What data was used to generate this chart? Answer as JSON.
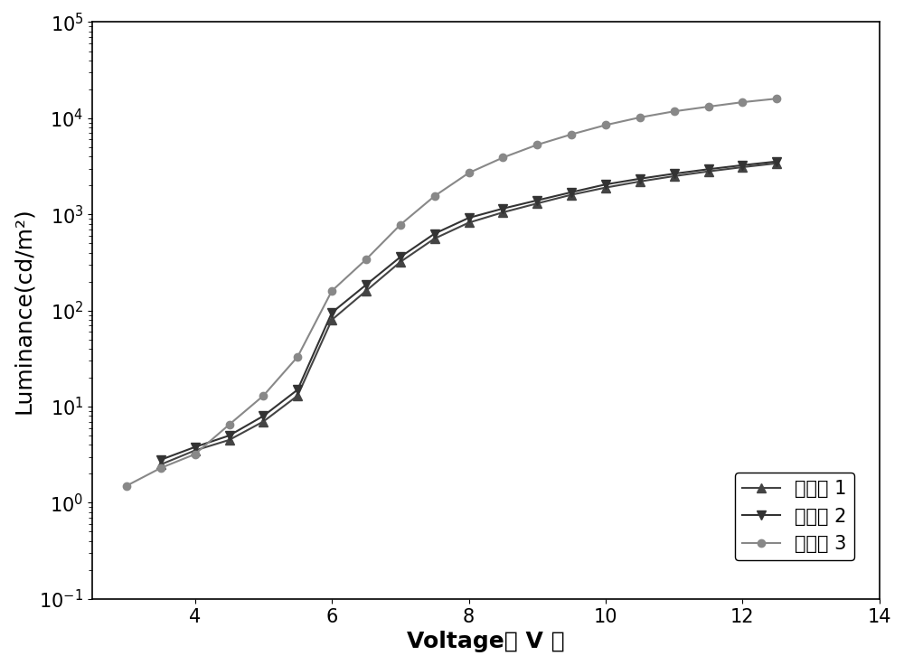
{
  "title": "",
  "xlabel": "Voltage （ V ）",
  "ylabel": "Luminance(cd/m²)",
  "xlim": [
    2.5,
    14
  ],
  "ylim": [
    0.1,
    100000
  ],
  "xticks": [
    4,
    6,
    8,
    10,
    12,
    14
  ],
  "background_color": "#ffffff",
  "series": [
    {
      "label": "化合物 1",
      "marker": "^",
      "color": "#444444",
      "linewidth": 1.5,
      "markersize": 7,
      "x": [
        3.5,
        4.0,
        4.5,
        5.0,
        5.5,
        6.0,
        6.5,
        7.0,
        7.5,
        8.0,
        8.5,
        9.0,
        9.5,
        10.0,
        10.5,
        11.0,
        11.5,
        12.0,
        12.5
      ],
      "y": [
        2.5,
        3.5,
        4.5,
        7.0,
        13.0,
        80,
        160,
        320,
        560,
        820,
        1050,
        1300,
        1600,
        1900,
        2200,
        2500,
        2800,
        3100,
        3400
      ]
    },
    {
      "label": "化合物 2",
      "marker": "v",
      "color": "#333333",
      "linewidth": 1.5,
      "markersize": 7,
      "x": [
        3.5,
        4.0,
        4.5,
        5.0,
        5.5,
        6.0,
        6.5,
        7.0,
        7.5,
        8.0,
        8.5,
        9.0,
        9.5,
        10.0,
        10.5,
        11.0,
        11.5,
        12.0,
        12.5
      ],
      "y": [
        2.8,
        3.8,
        5.0,
        8.0,
        15.0,
        95,
        185,
        360,
        630,
        920,
        1150,
        1400,
        1700,
        2050,
        2350,
        2650,
        2950,
        3250,
        3550
      ]
    },
    {
      "label": "化合物 3",
      "marker": "o",
      "color": "#888888",
      "linewidth": 1.5,
      "markersize": 6,
      "x": [
        3.0,
        3.5,
        4.0,
        4.5,
        5.0,
        5.5,
        6.0,
        6.5,
        7.0,
        7.5,
        8.0,
        8.5,
        9.0,
        9.5,
        10.0,
        10.5,
        11.0,
        11.5,
        12.0,
        12.5
      ],
      "y": [
        1.5,
        2.3,
        3.2,
        6.5,
        13.0,
        33.0,
        160,
        340,
        780,
        1550,
        2700,
        3900,
        5300,
        6800,
        8500,
        10200,
        11800,
        13200,
        14700,
        16000
      ]
    }
  ],
  "legend_fontsize": 15,
  "axis_label_fontsize": 18,
  "tick_fontsize": 15
}
